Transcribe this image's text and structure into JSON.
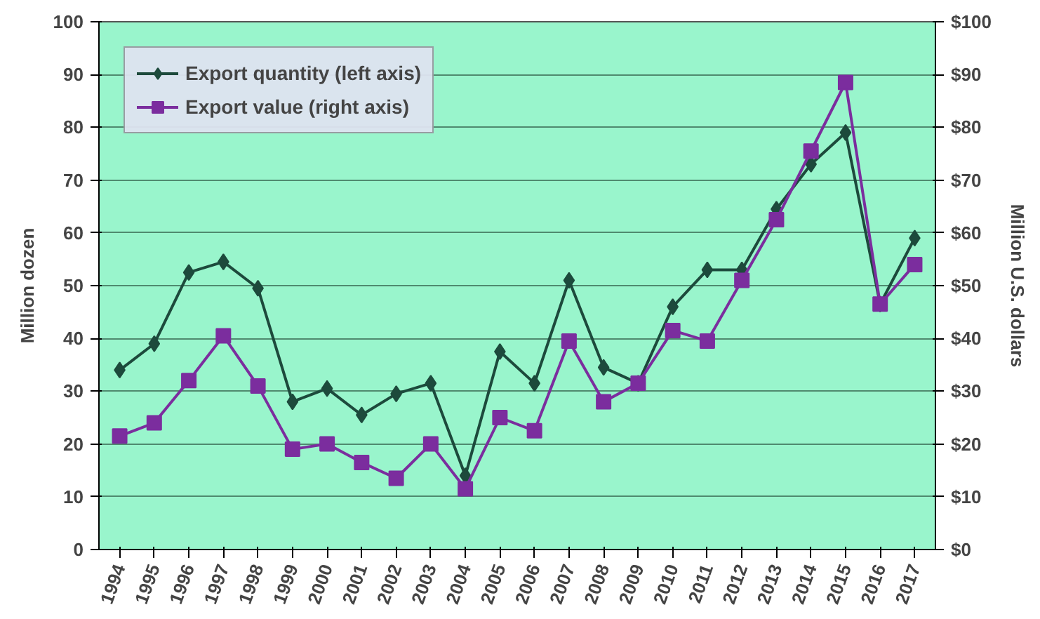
{
  "chart_data": {
    "type": "line",
    "ylabel": "Million dozen",
    "y2label": "Million U.S. dollars",
    "categories": [
      "1994",
      "1995",
      "1996",
      "1997",
      "1998",
      "1999",
      "2000",
      "2001",
      "2002",
      "2003",
      "2004",
      "2005",
      "2006",
      "2007",
      "2008",
      "2009",
      "2010",
      "2011",
      "2012",
      "2013",
      "2014",
      "2015",
      "2016",
      "2017"
    ],
    "series": [
      {
        "name": "Export quantity (left axis)",
        "color": "#1d4a3c",
        "marker": "diamond",
        "values": [
          34,
          39,
          52.5,
          54.5,
          49.5,
          28,
          30.5,
          25.5,
          29.5,
          31.5,
          14,
          37.5,
          31.5,
          51,
          34.5,
          31.5,
          46,
          53,
          53,
          64.5,
          73,
          79,
          46.5,
          59
        ]
      },
      {
        "name": "Export value (right axis)",
        "color": "#7b2d9e",
        "marker": "square",
        "axis": "y2",
        "values": [
          21.5,
          24,
          32,
          40.5,
          31,
          19,
          20,
          16.5,
          13.5,
          20,
          11.5,
          25,
          22.5,
          39.5,
          28,
          31.5,
          41.5,
          39.5,
          51,
          62.5,
          75.5,
          88.5,
          46.5,
          54
        ]
      }
    ],
    "ylim": [
      0,
      100
    ],
    "yticks": [
      0,
      10,
      20,
      30,
      40,
      50,
      60,
      70,
      80,
      90,
      100
    ],
    "y2lim": [
      0,
      100
    ],
    "y2ticks": [
      {
        "value": 0,
        "label": "$0"
      },
      {
        "value": 10,
        "label": "$10"
      },
      {
        "value": 20,
        "label": "$20"
      },
      {
        "value": 30,
        "label": "$30"
      },
      {
        "value": 40,
        "label": "$40"
      },
      {
        "value": 50,
        "label": "$50"
      },
      {
        "value": 60,
        "label": "$60"
      },
      {
        "value": 70,
        "label": "$70"
      },
      {
        "value": 80,
        "label": "$80"
      },
      {
        "value": 90,
        "label": "$90"
      },
      {
        "value": 100,
        "label": "$100"
      }
    ],
    "grid": "y",
    "legend": "top left"
  }
}
